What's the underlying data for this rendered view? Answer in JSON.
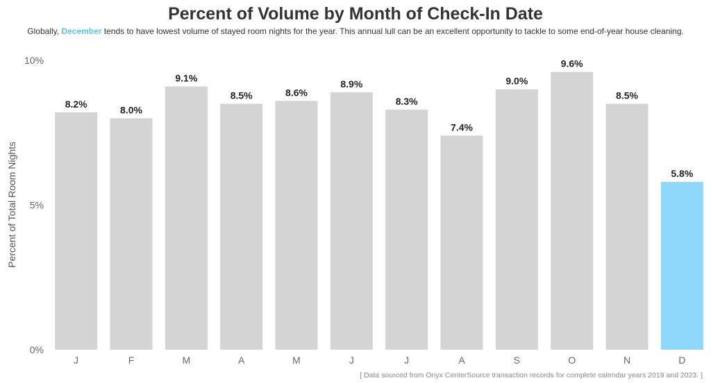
{
  "subtitle": {
    "prefix": "Globally, ",
    "highlight": "December",
    "suffix": " tends to have lowest volume of stayed room nights for the year. This annual lull can be an excellent opportunity to tackle to some end-of-year house cleaning."
  },
  "source_note": "[ Data sourced from Onyx CenterSource transaction records for complete calendar years 2019 and 2023. ]",
  "colors": {
    "default_bar": "#d4d4d4",
    "highlight_bar": "#8fd8fb",
    "highlight_text": "#5fc3ef"
  },
  "chart_data": {
    "type": "bar",
    "title": "Percent of Volume by Month of Check-In Date",
    "categories": [
      "J",
      "F",
      "M",
      "A",
      "M",
      "J",
      "J",
      "A",
      "S",
      "O",
      "N",
      "D"
    ],
    "values": [
      8.2,
      8.0,
      9.1,
      8.5,
      8.6,
      8.9,
      8.3,
      7.4,
      9.0,
      9.6,
      8.5,
      5.8
    ],
    "value_labels": [
      "8.2%",
      "8.0%",
      "9.1%",
      "8.5%",
      "8.6%",
      "8.9%",
      "8.3%",
      "7.4%",
      "9.0%",
      "9.6%",
      "8.5%",
      "5.8%"
    ],
    "highlight_index": 11,
    "xlabel": "",
    "ylabel": "Percent of Total Room Nights",
    "ylim": [
      0,
      10
    ],
    "yticks": [
      0,
      5,
      10
    ],
    "ytick_labels": [
      "0%",
      "5%",
      "10%"
    ],
    "grid": false,
    "legend": "none"
  }
}
